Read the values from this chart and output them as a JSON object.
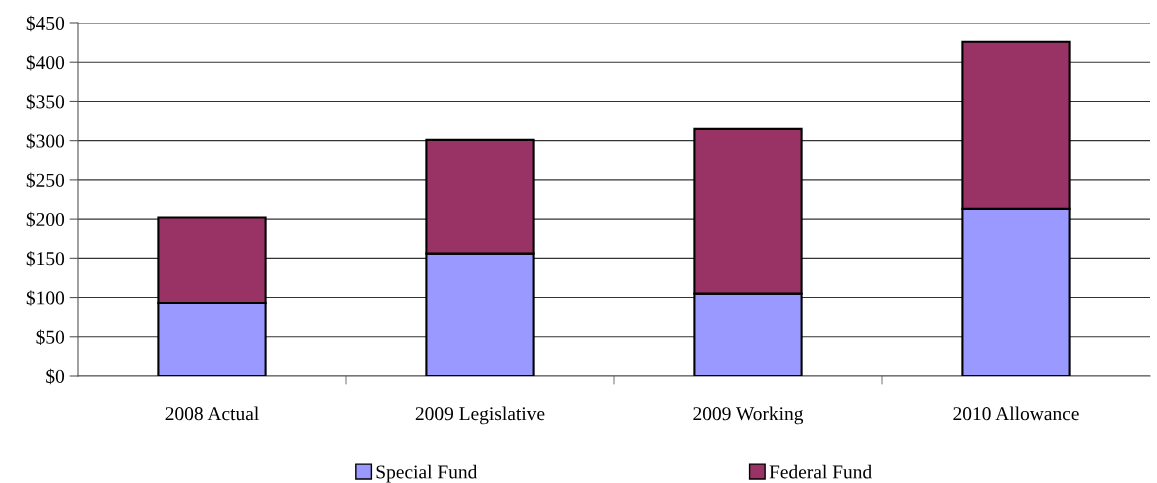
{
  "chart_data": {
    "type": "bar",
    "stacked": true,
    "categories": [
      "2008 Actual",
      "2009 Legislative",
      "2009 Working",
      "2010 Allowance"
    ],
    "series": [
      {
        "name": "Special Fund",
        "color": "#9999ff",
        "values": [
          93,
          156,
          105,
          213
        ]
      },
      {
        "name": "Federal Fund",
        "color": "#993366",
        "values": [
          109,
          145,
          210,
          213
        ]
      }
    ],
    "ylim": [
      0,
      450
    ],
    "yticks": [
      {
        "value": 0,
        "label": "$0"
      },
      {
        "value": 50,
        "label": "$50"
      },
      {
        "value": 100,
        "label": "$100"
      },
      {
        "value": 150,
        "label": "$150"
      },
      {
        "value": 200,
        "label": "$200"
      },
      {
        "value": 250,
        "label": "$250"
      },
      {
        "value": 300,
        "label": "$300"
      },
      {
        "value": 350,
        "label": "$350"
      },
      {
        "value": 400,
        "label": "$400"
      },
      {
        "value": 450,
        "label": "$450"
      }
    ],
    "grid": "y",
    "legend": "bottom"
  }
}
